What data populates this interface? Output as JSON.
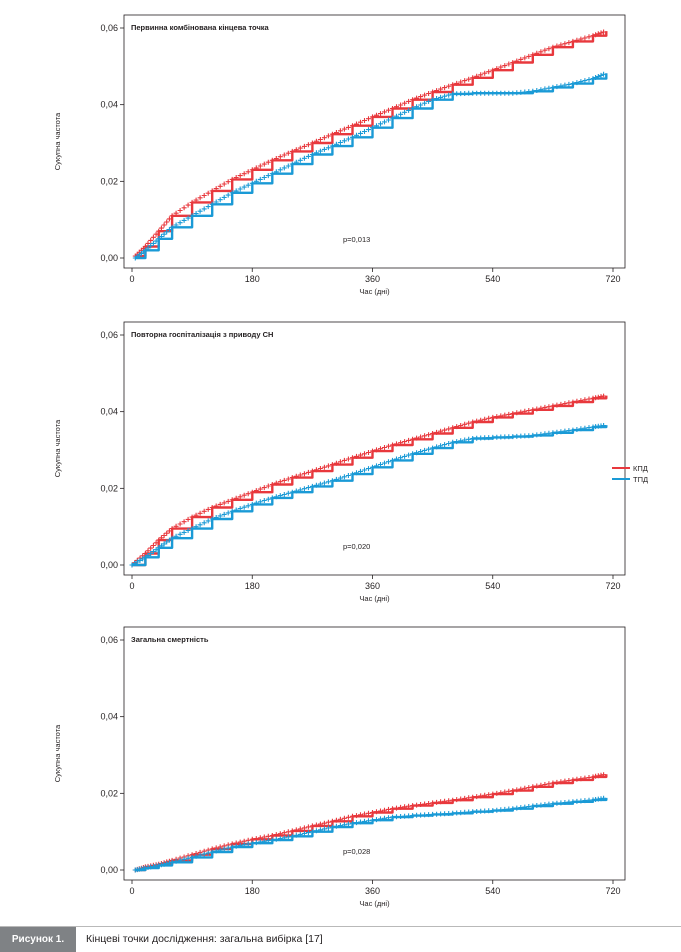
{
  "caption": {
    "label": "Рисунок 1.",
    "text": "Кінцеві точки дослідження: загальна вибірка [17]"
  },
  "legend": {
    "position": "right-middle",
    "items": [
      {
        "label": "КПД",
        "color": "#e8383d"
      },
      {
        "label": "ТПД",
        "color": "#1a9ad6"
      }
    ]
  },
  "chart_data": [
    {
      "type": "line",
      "title": "Первинна комбінована кінцева точка",
      "xlabel": "Час (дні)",
      "ylabel": "Сукупна частота",
      "xlim": [
        0,
        720
      ],
      "ylim": [
        0,
        0.06
      ],
      "xticks": [
        "0",
        "180",
        "360",
        "540",
        "720"
      ],
      "yticks": [
        "0,00",
        "0,02",
        "0,04",
        "0,06"
      ],
      "annotation": "p=0,013",
      "series": [
        {
          "name": "КПД",
          "color": "#e8383d",
          "x": [
            5,
            20,
            40,
            60,
            90,
            120,
            150,
            180,
            210,
            240,
            270,
            300,
            330,
            360,
            390,
            420,
            450,
            480,
            510,
            540,
            570,
            600,
            630,
            660,
            690,
            710
          ],
          "y": [
            0.0005,
            0.003,
            0.007,
            0.011,
            0.0145,
            0.0175,
            0.0205,
            0.023,
            0.0255,
            0.0278,
            0.03,
            0.0323,
            0.0345,
            0.0368,
            0.039,
            0.0413,
            0.0433,
            0.0452,
            0.047,
            0.049,
            0.051,
            0.053,
            0.055,
            0.0565,
            0.058,
            0.0592
          ]
        },
        {
          "name": "ТПД",
          "color": "#1a9ad6",
          "x": [
            5,
            20,
            40,
            60,
            90,
            120,
            150,
            180,
            210,
            240,
            270,
            300,
            330,
            360,
            390,
            420,
            450,
            480,
            510,
            540,
            570,
            600,
            630,
            660,
            690,
            710
          ],
          "y": [
            0,
            0.002,
            0.005,
            0.008,
            0.011,
            0.014,
            0.017,
            0.0195,
            0.022,
            0.0245,
            0.027,
            0.0292,
            0.0315,
            0.034,
            0.0365,
            0.039,
            0.0413,
            0.0428,
            0.043,
            0.043,
            0.043,
            0.0435,
            0.0445,
            0.0455,
            0.0468,
            0.0482
          ]
        }
      ]
    },
    {
      "type": "line",
      "title": "Повторна госпіталізація з приводу СН",
      "xlabel": "Час (дні)",
      "ylabel": "Сукупна частота",
      "xlim": [
        0,
        720
      ],
      "ylim": [
        0,
        0.06
      ],
      "xticks": [
        "0",
        "180",
        "360",
        "540",
        "720"
      ],
      "yticks": [
        "0,00",
        "0,02",
        "0,04",
        "0,06"
      ],
      "annotation": "p=0,020",
      "series": [
        {
          "name": "КПД",
          "color": "#e8383d",
          "x": [
            0,
            20,
            40,
            60,
            90,
            120,
            150,
            180,
            210,
            240,
            270,
            300,
            330,
            360,
            390,
            420,
            450,
            480,
            510,
            540,
            570,
            600,
            630,
            660,
            690,
            710
          ],
          "y": [
            0,
            0.003,
            0.0065,
            0.0095,
            0.0125,
            0.015,
            0.017,
            0.019,
            0.021,
            0.0228,
            0.0245,
            0.0262,
            0.028,
            0.0297,
            0.0313,
            0.0328,
            0.0343,
            0.0358,
            0.0373,
            0.0385,
            0.0395,
            0.0405,
            0.0415,
            0.0425,
            0.0435,
            0.0442
          ]
        },
        {
          "name": "ТПД",
          "color": "#1a9ad6",
          "x": [
            0,
            20,
            40,
            60,
            90,
            120,
            150,
            180,
            210,
            240,
            270,
            300,
            330,
            360,
            390,
            420,
            450,
            480,
            510,
            540,
            570,
            600,
            630,
            660,
            690,
            710
          ],
          "y": [
            0,
            0.002,
            0.0045,
            0.007,
            0.0095,
            0.012,
            0.014,
            0.0158,
            0.0175,
            0.019,
            0.0205,
            0.022,
            0.0237,
            0.0255,
            0.0273,
            0.029,
            0.0305,
            0.032,
            0.033,
            0.0333,
            0.0335,
            0.0338,
            0.0345,
            0.0352,
            0.036,
            0.0365
          ]
        }
      ]
    },
    {
      "type": "line",
      "title": "Загальна смертність",
      "xlabel": "Час (дні)",
      "ylabel": "Сукупна частота",
      "xlim": [
        0,
        720
      ],
      "ylim": [
        0,
        0.06
      ],
      "xticks": [
        "0",
        "180",
        "360",
        "540",
        "720"
      ],
      "yticks": [
        "0,00",
        "0,02",
        "0,04",
        "0,06"
      ],
      "annotation": "p=0,028",
      "series": [
        {
          "name": "КПД",
          "color": "#e8383d",
          "x": [
            5,
            20,
            40,
            60,
            90,
            120,
            150,
            180,
            210,
            240,
            270,
            300,
            330,
            360,
            390,
            420,
            450,
            480,
            510,
            540,
            570,
            600,
            630,
            660,
            690,
            710
          ],
          "y": [
            0,
            0.0008,
            0.0015,
            0.0025,
            0.004,
            0.0055,
            0.0068,
            0.008,
            0.009,
            0.0102,
            0.0115,
            0.0127,
            0.014,
            0.015,
            0.016,
            0.0168,
            0.0175,
            0.0182,
            0.019,
            0.0198,
            0.0207,
            0.0217,
            0.0227,
            0.0235,
            0.0243,
            0.025
          ]
        },
        {
          "name": "ТПД",
          "color": "#1a9ad6",
          "x": [
            5,
            20,
            40,
            60,
            90,
            120,
            150,
            180,
            210,
            240,
            270,
            300,
            330,
            360,
            390,
            420,
            450,
            480,
            510,
            540,
            570,
            600,
            630,
            660,
            690,
            710
          ],
          "y": [
            0,
            0.0005,
            0.0012,
            0.002,
            0.0033,
            0.0047,
            0.006,
            0.007,
            0.0078,
            0.0088,
            0.01,
            0.0112,
            0.0122,
            0.013,
            0.0138,
            0.0142,
            0.0145,
            0.0148,
            0.0152,
            0.0155,
            0.016,
            0.0167,
            0.0173,
            0.0178,
            0.0183,
            0.0188
          ]
        }
      ]
    }
  ]
}
